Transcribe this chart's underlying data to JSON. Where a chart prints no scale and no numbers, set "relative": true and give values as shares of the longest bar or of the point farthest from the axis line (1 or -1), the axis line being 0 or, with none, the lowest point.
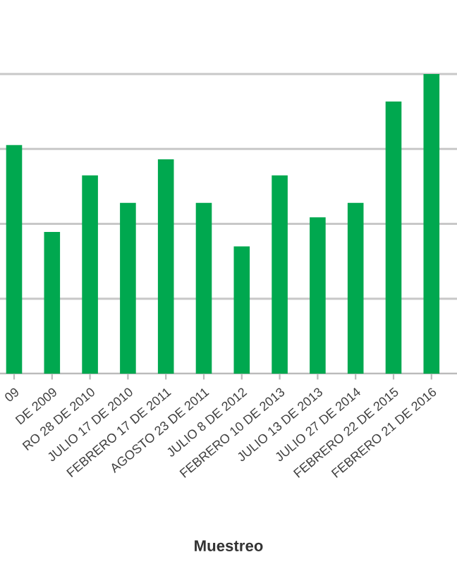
{
  "chart_data": {
    "type": "bar",
    "xlabel": "Muestreo",
    "relative": true,
    "grid": "y",
    "color": "#00a84f",
    "categories": [
      "09",
      "DE 2009",
      "RO 28 DE 2010",
      "JULIO 17 DE 2010",
      "FEBRERO 17 DE 2011",
      "AGOSTO 23 DE 2011",
      "JULIO 8 DE 2012",
      "FEBRERO 10 DE 2013",
      "JULIO 13 DE 2013",
      "JULIO 27 DE 2014",
      "FEBRERO 22 DE 2015",
      "FEBRERO 21 DE 2016"
    ],
    "values": [
      0.763,
      0.473,
      0.662,
      0.57,
      0.715,
      0.57,
      0.425,
      0.662,
      0.522,
      0.57,
      0.908,
      1.0
    ]
  }
}
